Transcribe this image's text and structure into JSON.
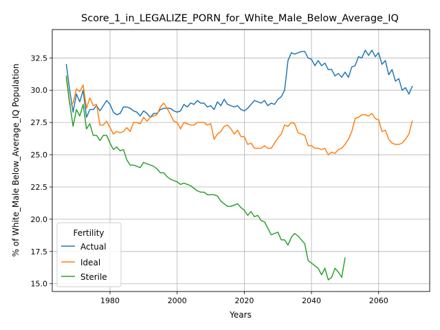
{
  "chart_data": {
    "type": "line",
    "title": "Score_1_in_LEGALIZE_PORN_for_White_Male_Below_Average_IQ",
    "xlabel": "Years",
    "ylabel": "% of White_Male Below_Average_IQ Population",
    "xlim": [
      1962.8,
      2075.2
    ],
    "ylim": [
      14.4,
      34.7
    ],
    "xticks": [
      1980,
      2000,
      2020,
      2040,
      2060
    ],
    "yticks": [
      15.0,
      17.5,
      20.0,
      22.5,
      25.0,
      27.5,
      30.0,
      32.5
    ],
    "ytick_labels": [
      "15.0",
      "17.5",
      "20.0",
      "22.5",
      "25.0",
      "27.5",
      "30.0",
      "32.5"
    ],
    "grid": true,
    "legend": {
      "title": "Fertility",
      "placement": "lower-left"
    },
    "series": [
      {
        "name": "Actual",
        "color": "#1f77b4",
        "x": [
          1967,
          1968,
          1969,
          1970,
          1971,
          1972,
          1973,
          1974,
          1975,
          1976,
          1977,
          1978,
          1979,
          1980,
          1981,
          1982,
          1983,
          1984,
          1985,
          1986,
          1987,
          1988,
          1989,
          1990,
          1991,
          1992,
          1993,
          1994,
          1995,
          1996,
          1997,
          1998,
          1999,
          2000,
          2001,
          2002,
          2003,
          2004,
          2005,
          2006,
          2007,
          2008,
          2009,
          2010,
          2011,
          2012,
          2013,
          2014,
          2015,
          2016,
          2017,
          2018,
          2019,
          2020,
          2021,
          2022,
          2023,
          2024,
          2025,
          2026,
          2027,
          2028,
          2029,
          2030,
          2031,
          2032,
          2033,
          2034,
          2035,
          2036,
          2037,
          2038,
          2039,
          2040,
          2041,
          2042,
          2043,
          2044,
          2045,
          2046,
          2047,
          2048,
          2049,
          2050,
          2051,
          2052,
          2053,
          2054,
          2055,
          2056,
          2057,
          2058,
          2059,
          2060,
          2061,
          2062,
          2063,
          2064,
          2065,
          2066,
          2067,
          2068,
          2069,
          2070
        ],
        "values": [
          32.0,
          30.0,
          28.3,
          29.7,
          29.1,
          30.0,
          27.9,
          28.5,
          28.5,
          28.8,
          28.4,
          28.8,
          29.2,
          28.9,
          28.3,
          28.1,
          28.2,
          28.7,
          28.7,
          28.6,
          28.4,
          28.3,
          28.0,
          28.4,
          28.2,
          27.9,
          28.2,
          28.2,
          28.5,
          28.6,
          28.6,
          28.6,
          28.4,
          28.3,
          28.4,
          28.9,
          28.7,
          29.0,
          28.9,
          29.2,
          29.0,
          29.0,
          28.7,
          28.8,
          28.5,
          29.1,
          28.8,
          29.3,
          28.9,
          28.8,
          28.7,
          28.8,
          28.5,
          28.4,
          28.6,
          28.9,
          29.2,
          29.1,
          29.0,
          29.2,
          28.8,
          29.0,
          28.9,
          29.3,
          29.5,
          30.0,
          32.3,
          32.9,
          32.8,
          32.9,
          33.0,
          33.0,
          32.5,
          32.4,
          31.9,
          32.3,
          31.9,
          32.1,
          31.6,
          31.6,
          31.1,
          31.3,
          31.0,
          31.4,
          31.0,
          31.8,
          31.9,
          32.6,
          32.5,
          33.1,
          32.7,
          33.1,
          32.6,
          32.9,
          32.0,
          32.3,
          31.2,
          31.6,
          30.7,
          30.9,
          30.0,
          30.2,
          29.7,
          30.3
        ]
      },
      {
        "name": "Ideal",
        "color": "#ff7f0e",
        "x": [
          1967,
          1968,
          1969,
          1970,
          1971,
          1972,
          1973,
          1974,
          1975,
          1976,
          1977,
          1978,
          1979,
          1980,
          1981,
          1982,
          1983,
          1984,
          1985,
          1986,
          1987,
          1988,
          1989,
          1990,
          1991,
          1992,
          1993,
          1994,
          1995,
          1996,
          1997,
          1998,
          1999,
          2000,
          2001,
          2002,
          2003,
          2004,
          2005,
          2006,
          2007,
          2008,
          2009,
          2010,
          2011,
          2012,
          2013,
          2014,
          2015,
          2016,
          2017,
          2018,
          2019,
          2020,
          2021,
          2022,
          2023,
          2024,
          2025,
          2026,
          2027,
          2028,
          2029,
          2030,
          2031,
          2032,
          2033,
          2034,
          2035,
          2036,
          2037,
          2038,
          2039,
          2040,
          2041,
          2042,
          2043,
          2044,
          2045,
          2046,
          2047,
          2048,
          2049,
          2050,
          2051,
          2052,
          2053,
          2054,
          2055,
          2056,
          2057,
          2058,
          2059,
          2060,
          2061,
          2062,
          2063,
          2064,
          2065,
          2066,
          2067,
          2068,
          2069,
          2070
        ],
        "values": [
          30.9,
          28.9,
          29.0,
          30.1,
          29.9,
          30.4,
          28.6,
          29.4,
          28.8,
          28.9,
          27.3,
          27.3,
          27.6,
          27.1,
          26.6,
          26.8,
          26.7,
          26.8,
          27.1,
          26.8,
          27.5,
          27.5,
          27.4,
          27.9,
          27.6,
          27.9,
          28.0,
          28.1,
          28.7,
          29.0,
          28.6,
          28.1,
          27.6,
          27.5,
          27.0,
          27.5,
          27.4,
          27.3,
          27.3,
          27.5,
          27.5,
          27.5,
          27.3,
          27.4,
          26.2,
          26.6,
          26.8,
          27.2,
          27.3,
          27.0,
          26.6,
          26.9,
          26.4,
          26.4,
          25.8,
          25.9,
          25.5,
          25.5,
          25.5,
          25.7,
          25.5,
          25.5,
          25.9,
          26.3,
          26.6,
          27.3,
          27.2,
          27.5,
          27.4,
          26.7,
          26.6,
          26.5,
          25.7,
          25.7,
          25.5,
          25.5,
          25.4,
          25.5,
          25.0,
          25.2,
          25.1,
          25.4,
          25.5,
          25.8,
          26.2,
          26.8,
          27.8,
          27.9,
          28.1,
          28.1,
          28.0,
          28.2,
          27.8,
          27.7,
          26.8,
          26.9,
          26.2,
          25.9,
          25.8,
          25.8,
          25.9,
          26.2,
          26.6,
          27.6
        ]
      },
      {
        "name": "Sterile",
        "color": "#2ca02c",
        "x": [
          1967,
          1968,
          1969,
          1970,
          1971,
          1972,
          1973,
          1974,
          1975,
          1976,
          1977,
          1978,
          1979,
          1980,
          1981,
          1982,
          1983,
          1984,
          1985,
          1986,
          1987,
          1988,
          1989,
          1990,
          1991,
          1992,
          1993,
          1994,
          1995,
          1996,
          1997,
          1998,
          1999,
          2000,
          2001,
          2002,
          2003,
          2004,
          2005,
          2006,
          2007,
          2008,
          2009,
          2010,
          2011,
          2012,
          2013,
          2014,
          2015,
          2016,
          2017,
          2018,
          2019,
          2020,
          2021,
          2022,
          2023,
          2024,
          2025,
          2026,
          2027,
          2028,
          2029,
          2030,
          2031,
          2032,
          2033,
          2034,
          2035,
          2036,
          2037,
          2038,
          2039,
          2040,
          2041,
          2042,
          2043,
          2044,
          2045,
          2046,
          2047,
          2048,
          2049,
          2050
        ],
        "values": [
          31.1,
          29.0,
          27.2,
          28.5,
          28.0,
          28.9,
          27.0,
          27.4,
          26.5,
          26.5,
          26.1,
          26.5,
          26.5,
          25.9,
          25.4,
          25.6,
          25.3,
          25.4,
          24.6,
          24.2,
          24.2,
          24.1,
          24.0,
          24.4,
          24.3,
          24.2,
          24.1,
          23.9,
          23.6,
          23.6,
          23.3,
          23.1,
          23.0,
          22.9,
          22.7,
          22.8,
          22.7,
          22.6,
          22.4,
          22.2,
          22.1,
          22.1,
          21.9,
          21.9,
          21.9,
          21.8,
          21.4,
          21.2,
          21.0,
          21.0,
          21.1,
          21.2,
          20.9,
          20.7,
          20.3,
          20.6,
          20.2,
          20.3,
          19.9,
          19.8,
          19.3,
          18.8,
          18.9,
          19.0,
          18.4,
          18.4,
          18.0,
          18.6,
          18.9,
          18.7,
          18.4,
          18.1,
          16.8,
          16.6,
          16.4,
          16.2,
          15.7,
          16.2,
          15.3,
          15.5,
          16.2,
          15.9,
          15.5,
          17.0
        ]
      }
    ]
  }
}
